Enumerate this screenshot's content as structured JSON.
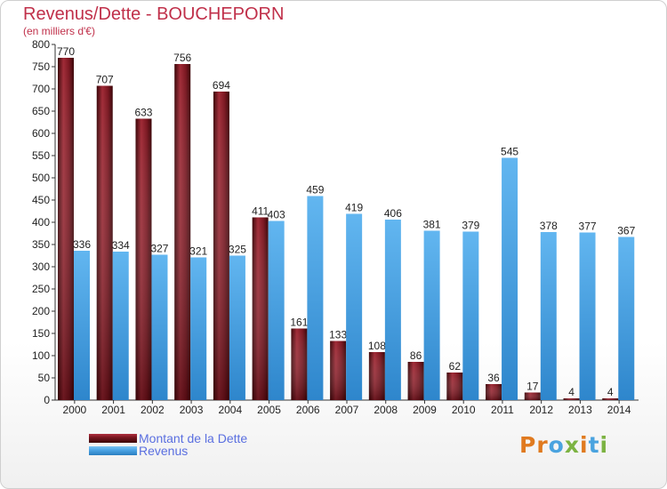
{
  "title": "Revenus/Dette - BOUCHEPORN",
  "subtitle": "(en milliers d'€)",
  "colors": {
    "dette": "#7a1620",
    "revenus": "#4ea6e6",
    "title": "#c0304a",
    "legend_text": "#5a6fe0"
  },
  "legend": {
    "position": "bottom-left",
    "items": [
      {
        "label": "Montant de la Dette",
        "series": 0
      },
      {
        "label": "Revenus",
        "series": 1
      }
    ]
  },
  "logo": {
    "text": "Proxiti"
  },
  "chart_data": {
    "type": "bar",
    "title": "Revenus/Dette - BOUCHEPORN",
    "subtitle": "(en milliers d'€)",
    "xlabel": "",
    "ylabel": "",
    "categories": [
      "2000",
      "2001",
      "2002",
      "2003",
      "2004",
      "2005",
      "2006",
      "2007",
      "2008",
      "2009",
      "2010",
      "2011",
      "2012",
      "2013",
      "2014"
    ],
    "series": [
      {
        "name": "Montant de la Dette",
        "values": [
          770,
          707,
          633,
          756,
          694,
          411,
          161,
          133,
          108,
          86,
          62,
          36,
          17,
          4,
          4
        ]
      },
      {
        "name": "Revenus",
        "values": [
          336,
          334,
          327,
          321,
          325,
          403,
          459,
          419,
          406,
          381,
          379,
          545,
          378,
          377,
          367
        ]
      }
    ],
    "ylim": [
      0,
      800
    ],
    "yticks": [
      0,
      50,
      100,
      150,
      200,
      250,
      300,
      350,
      400,
      450,
      500,
      550,
      600,
      650,
      700,
      750,
      800
    ],
    "grid": false,
    "legend_position": "bottom-left"
  }
}
